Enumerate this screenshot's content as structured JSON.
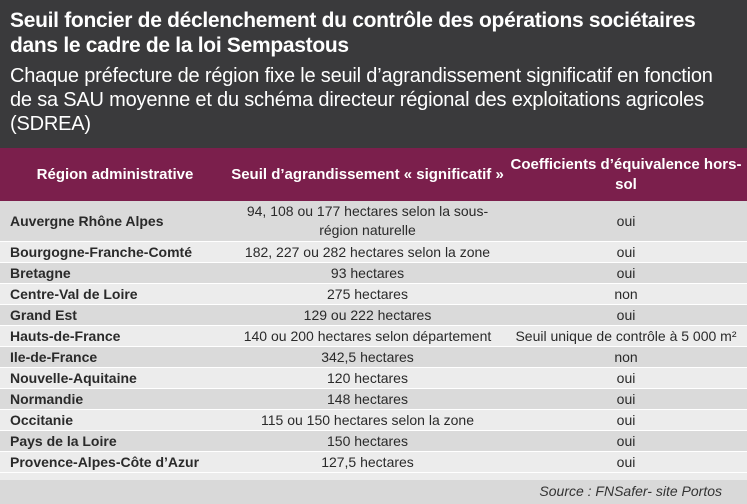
{
  "header": {
    "title": "Seuil foncier de déclenchement du contrôle des opérations sociétaires dans le cadre de la loi Sempastous",
    "subtitle": "Chaque préfecture de région fixe le seuil d’agrandissement significatif en fonction de sa SAU moyenne et du schéma directeur régional des exploitations agricoles (SDREA)"
  },
  "table": {
    "columns": [
      "Région administrative",
      "Seuil d’agrandissement « significatif »",
      "Coefficients d’équivalence hors-sol"
    ],
    "rows": [
      [
        "Auvergne Rhône Alpes",
        "94, 108 ou 177 hectares selon la sous-région naturelle",
        "oui"
      ],
      [
        "Bourgogne-Franche-Comté",
        "182, 227 ou 282 hectares selon la zone",
        "oui"
      ],
      [
        "Bretagne",
        "93 hectares",
        "oui"
      ],
      [
        "Centre-Val de Loire",
        "275 hectares",
        "non"
      ],
      [
        "Grand Est",
        "129 ou 222 hectares",
        "oui"
      ],
      [
        "Hauts-de-France",
        "140 ou 200 hectares selon département",
        "Seuil unique de contrôle à 5 000 m²"
      ],
      [
        "Ile-de-France",
        "342,5 hectares",
        "non"
      ],
      [
        "Nouvelle-Aquitaine",
        "120 hectares",
        "oui"
      ],
      [
        "Normandie",
        "148 hectares",
        "oui"
      ],
      [
        "Occitanie",
        "115 ou 150 hectares selon la zone",
        "oui"
      ],
      [
        "Pays de la Loire",
        "150 hectares",
        "oui"
      ],
      [
        "Provence-Alpes-Côte d’Azur",
        "127,5 hectares",
        "oui"
      ]
    ]
  },
  "footer": {
    "source": "Source : FNSafer- site Portos"
  },
  "colors": {
    "header_bg": "#3a3a3c",
    "table_header_bg": "#7b1f4c",
    "row_alt_bg": "#dadada",
    "page_bg": "#ececec"
  }
}
